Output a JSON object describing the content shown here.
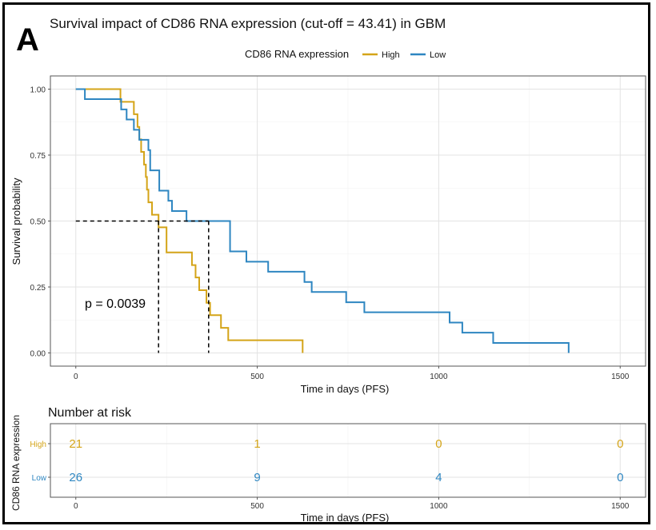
{
  "panel_letter": "A",
  "colors": {
    "high": "#D4A418",
    "low": "#2E86C1",
    "grid_major": "#e3e3e3",
    "grid_minor": "#f1f1f1",
    "panel_border": "#555555"
  },
  "chart_data": [
    {
      "type": "line",
      "subtype": "kaplan-meier",
      "title": "Survival impact of CD86 RNA expression (cut-off = 43.41) in GBM",
      "xlabel": "Time in days (PFS)",
      "ylabel": "Survival probability",
      "xlim": [
        -70,
        1570
      ],
      "ylim": [
        -0.05,
        1.05
      ],
      "x_ticks": [
        0,
        500,
        1000,
        1500
      ],
      "y_ticks": [
        0.0,
        0.25,
        0.5,
        0.75,
        1.0
      ],
      "y_tick_labels": [
        "0.00",
        "0.25",
        "0.50",
        "0.75",
        "1.00"
      ],
      "grid": true,
      "legend": {
        "title": "CD86 RNA expression",
        "position": "top"
      },
      "annotation": "p = 0.0039",
      "median_line_y": 0.5,
      "median_survival": {
        "High": 228,
        "Low": 366
      },
      "series": [
        {
          "name": "High",
          "color_key": "high",
          "x": [
            0,
            118,
            123,
            160,
            170,
            175,
            180,
            188,
            193,
            196,
            200,
            210,
            220,
            228,
            250,
            310,
            320,
            330,
            340,
            360,
            370,
            400,
            420,
            620,
            625
          ],
          "y": [
            1.0,
            1.0,
            0.952,
            0.905,
            0.857,
            0.81,
            0.762,
            0.714,
            0.667,
            0.619,
            0.571,
            0.524,
            0.524,
            0.476,
            0.381,
            0.381,
            0.333,
            0.286,
            0.238,
            0.19,
            0.143,
            0.095,
            0.048,
            0.048,
            0.0
          ]
        },
        {
          "name": "Low",
          "color_key": "low",
          "x": [
            0,
            25,
            115,
            125,
            140,
            160,
            175,
            200,
            205,
            230,
            255,
            265,
            285,
            305,
            420,
            425,
            470,
            530,
            630,
            650,
            745,
            795,
            1030,
            1065,
            1150,
            1355,
            1358
          ],
          "y": [
            1.0,
            0.962,
            0.962,
            0.923,
            0.885,
            0.846,
            0.808,
            0.769,
            0.692,
            0.615,
            0.577,
            0.538,
            0.538,
            0.5,
            0.5,
            0.385,
            0.346,
            0.308,
            0.269,
            0.231,
            0.192,
            0.154,
            0.115,
            0.077,
            0.038,
            0.038,
            0.0
          ]
        }
      ]
    },
    {
      "type": "table",
      "title": "Number at risk",
      "xlabel": "Time in days (PFS)",
      "ylabel": "CD86 RNA expression",
      "xlim": [
        -70,
        1570
      ],
      "x_ticks": [
        0,
        500,
        1000,
        1500
      ],
      "rows": [
        {
          "name": "High",
          "color_key": "high",
          "values": [
            21,
            1,
            0,
            0
          ]
        },
        {
          "name": "Low",
          "color_key": "low",
          "values": [
            26,
            9,
            4,
            0
          ]
        }
      ]
    }
  ]
}
